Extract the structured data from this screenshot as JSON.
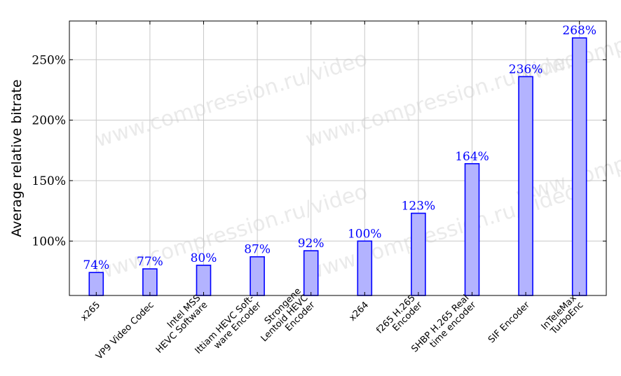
{
  "chart_data": {
    "type": "bar",
    "title": "",
    "xlabel": "",
    "ylabel": "Average relative bitrate",
    "ylim": [
      55,
      282
    ],
    "yticks": [
      100,
      150,
      200,
      250
    ],
    "ytick_labels": [
      "100%",
      "150%",
      "200%",
      "250%"
    ],
    "grid": true,
    "legend": "none",
    "bar_fill": "#b3b3ff",
    "bar_stroke": "#0000ff",
    "label_color": "#0000ff",
    "categories": [
      [
        "x265"
      ],
      [
        "VP9 Video Codec"
      ],
      [
        "Intel MSS",
        "HEVC Software"
      ],
      [
        "Ittiam HEVC Soft-",
        "ware Encoder"
      ],
      [
        "Strongene",
        "Lentoid HEVC",
        "Encoder"
      ],
      [
        "x264"
      ],
      [
        "f265 H.265",
        "Encoder"
      ],
      [
        "SHBP H.265 Real",
        "time encoder"
      ],
      [
        "SIF Encoder"
      ],
      [
        "InTeleMax",
        "TurboEnc"
      ]
    ],
    "values": [
      74,
      77,
      80,
      87,
      92,
      100,
      123,
      164,
      236,
      268
    ],
    "data_labels": [
      "74%",
      "77%",
      "80%",
      "87%",
      "92%",
      "100%",
      "123%",
      "164%",
      "236%",
      "268%"
    ]
  },
  "watermark": "www.compression.ru/video"
}
